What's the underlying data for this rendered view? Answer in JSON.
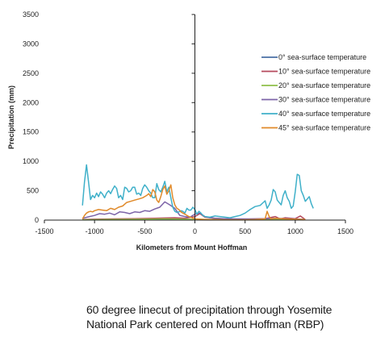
{
  "chart_data": {
    "type": "line",
    "title": "",
    "xlabel": "Kilometers from Mount Hoffman",
    "ylabel": "Precipitation (mm)",
    "xlim": [
      -1500,
      1500
    ],
    "ylim": [
      0,
      3500
    ],
    "xticks": [
      -1500,
      -1000,
      -500,
      0,
      500,
      1000,
      1500
    ],
    "yticks": [
      0,
      500,
      1000,
      1500,
      2000,
      2500,
      3000,
      3500
    ],
    "grid": false,
    "legend_position": "right",
    "series": [
      {
        "name": "0° sea-surface temperature",
        "color": "#4a6fa5",
        "x": [
          -1120,
          -900,
          -700,
          -500,
          -300,
          -100,
          0,
          100,
          300,
          500,
          700,
          900,
          1000,
          1100
        ],
        "y": [
          5,
          8,
          10,
          12,
          15,
          12,
          10,
          8,
          5,
          5,
          5,
          5,
          5,
          3
        ]
      },
      {
        "name": "10° sea-surface temperature",
        "color": "#b5495b",
        "x": [
          -1120,
          -1000,
          -800,
          -600,
          -400,
          -300,
          -200,
          -100,
          0,
          50,
          100,
          200,
          300,
          500,
          600,
          700,
          800,
          850,
          900,
          1000,
          1050,
          1100
        ],
        "y": [
          10,
          15,
          20,
          25,
          30,
          35,
          40,
          30,
          60,
          110,
          50,
          30,
          20,
          15,
          20,
          25,
          60,
          20,
          40,
          25,
          70,
          10
        ]
      },
      {
        "name": "20° sea-surface temperature",
        "color": "#8fbf4a",
        "x": [
          -1120,
          -900,
          -700,
          -500,
          -300,
          -100,
          0,
          100,
          300,
          500,
          700,
          900,
          1100
        ],
        "y": [
          5,
          10,
          12,
          15,
          20,
          15,
          10,
          12,
          8,
          6,
          8,
          10,
          5
        ]
      },
      {
        "name": "30° sea-surface temperature",
        "color": "#7d64a8",
        "x": [
          -1120,
          -1050,
          -1000,
          -950,
          -900,
          -850,
          -800,
          -750,
          -700,
          -650,
          -600,
          -550,
          -500,
          -450,
          -400,
          -350,
          -300,
          -250,
          -200,
          -150,
          -100,
          -50,
          0,
          50,
          100,
          150,
          200,
          300,
          400,
          500,
          600,
          700,
          800,
          900,
          1000,
          1100
        ],
        "y": [
          30,
          60,
          80,
          110,
          100,
          120,
          90,
          140,
          130,
          110,
          140,
          130,
          160,
          150,
          190,
          220,
          310,
          260,
          200,
          80,
          60,
          50,
          100,
          120,
          60,
          40,
          30,
          25,
          20,
          20,
          20,
          25,
          30,
          25,
          20,
          10
        ]
      },
      {
        "name": "40° sea-surface temperature",
        "color": "#3fb0c9",
        "x": [
          -1120,
          -1100,
          -1080,
          -1060,
          -1040,
          -1020,
          -1000,
          -980,
          -960,
          -940,
          -920,
          -900,
          -880,
          -860,
          -840,
          -820,
          -800,
          -780,
          -760,
          -740,
          -720,
          -700,
          -680,
          -660,
          -640,
          -620,
          -600,
          -580,
          -560,
          -540,
          -520,
          -500,
          -480,
          -460,
          -440,
          -420,
          -400,
          -380,
          -360,
          -340,
          -320,
          -300,
          -280,
          -260,
          -240,
          -220,
          -200,
          -180,
          -160,
          -140,
          -120,
          -100,
          -80,
          -60,
          -40,
          -20,
          0,
          20,
          40,
          60,
          80,
          100,
          150,
          200,
          250,
          300,
          350,
          400,
          450,
          500,
          550,
          600,
          650,
          700,
          720,
          740,
          760,
          780,
          800,
          820,
          840,
          860,
          880,
          900,
          920,
          940,
          960,
          980,
          1000,
          1020,
          1040,
          1060,
          1080,
          1100,
          1120,
          1140,
          1160,
          1180
        ],
        "y": [
          250,
          650,
          940,
          650,
          350,
          420,
          380,
          460,
          400,
          480,
          440,
          380,
          460,
          500,
          450,
          520,
          580,
          540,
          380,
          420,
          350,
          560,
          540,
          480,
          500,
          560,
          560,
          440,
          460,
          420,
          540,
          600,
          560,
          500,
          460,
          380,
          380,
          620,
          520,
          480,
          560,
          660,
          480,
          560,
          380,
          220,
          150,
          130,
          140,
          160,
          150,
          120,
          200,
          170,
          170,
          220,
          180,
          100,
          150,
          120,
          80,
          60,
          50,
          70,
          60,
          50,
          40,
          60,
          80,
          120,
          180,
          230,
          250,
          330,
          200,
          260,
          340,
          520,
          480,
          340,
          300,
          260,
          420,
          500,
          380,
          320,
          200,
          240,
          480,
          780,
          760,
          500,
          420,
          320,
          360,
          400,
          280,
          200
        ]
      },
      {
        "name": "45° sea-surface temperature",
        "color": "#e08a2a",
        "x": [
          -1120,
          -1100,
          -1080,
          -1060,
          -1040,
          -1020,
          -1000,
          -960,
          -920,
          -880,
          -840,
          -800,
          -760,
          -720,
          -680,
          -640,
          -600,
          -560,
          -520,
          -480,
          -460,
          -440,
          -420,
          -400,
          -380,
          -360,
          -340,
          -320,
          -300,
          -280,
          -260,
          -240,
          -220,
          -200,
          -180,
          -160,
          -140,
          -120,
          -100,
          -60,
          0,
          60,
          100,
          200,
          300,
          400,
          500,
          600,
          700,
          720,
          740,
          760,
          800,
          900,
          1000,
          1100
        ],
        "y": [
          20,
          80,
          120,
          140,
          150,
          140,
          160,
          180,
          170,
          160,
          200,
          180,
          220,
          240,
          300,
          320,
          340,
          360,
          380,
          420,
          450,
          400,
          520,
          480,
          340,
          300,
          400,
          520,
          580,
          440,
          500,
          600,
          380,
          260,
          200,
          180,
          140,
          120,
          100,
          60,
          20,
          15,
          10,
          8,
          5,
          5,
          5,
          10,
          20,
          150,
          60,
          20,
          30,
          20,
          15,
          10
        ]
      }
    ]
  },
  "caption": {
    "line1": "60 degree linecut of precipitation through Yosemite",
    "line2": "National Park centered on Mount Hoffman (RBP)"
  }
}
